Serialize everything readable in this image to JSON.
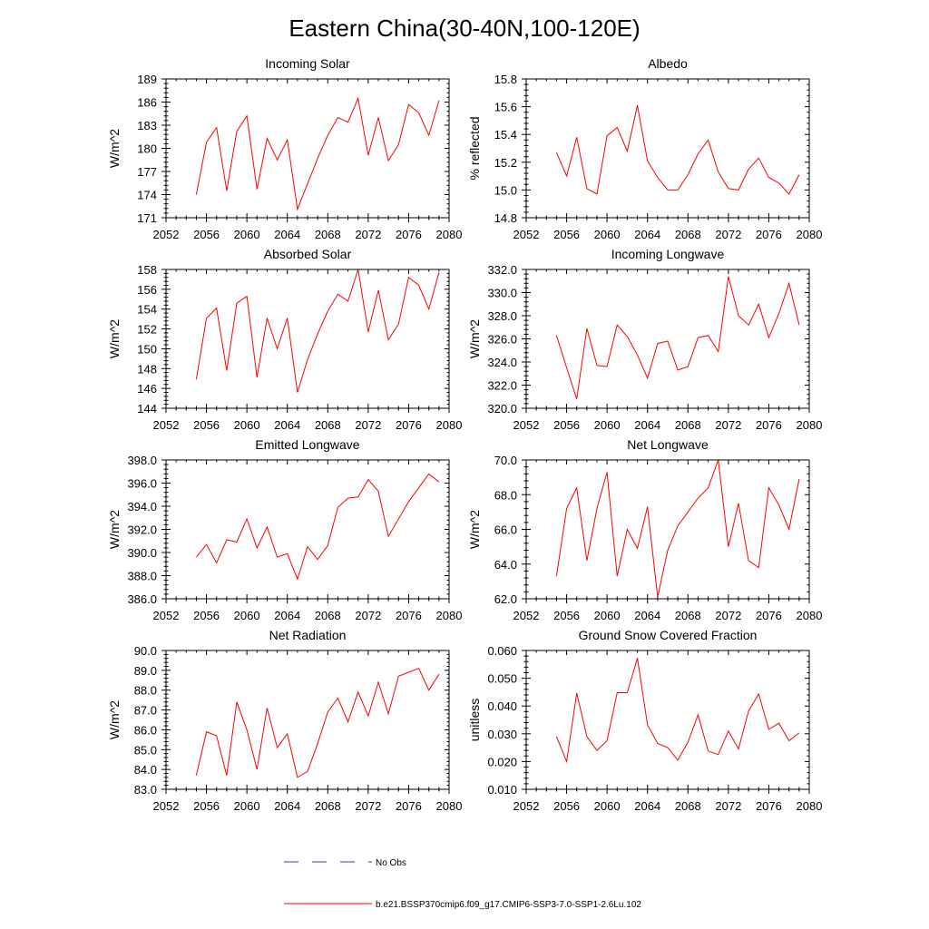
{
  "title": "Eastern China(30-40N,100-120E)",
  "legend": {
    "no_obs_label": "No Obs",
    "model_label": "b.e21.BSSP370cmip6.f09_g17.CMIP6-SSP3-7.0-SSP1-2.6Lu.102",
    "no_obs_color": "#3a3aa8",
    "model_color": "#ff0000"
  },
  "chart_data": [
    {
      "type": "line",
      "title": "Incoming Solar",
      "ylabel": "W/m^2",
      "xlim": [
        2052,
        2080
      ],
      "xticks": [
        2052,
        2056,
        2060,
        2064,
        2068,
        2072,
        2076,
        2080
      ],
      "ylim": [
        171,
        189
      ],
      "yticks": [
        171,
        174,
        177,
        180,
        183,
        186,
        189
      ],
      "ydecimals": 0,
      "x": [
        2055,
        2056,
        2057,
        2058,
        2059,
        2060,
        2061,
        2062,
        2063,
        2064,
        2065,
        2066,
        2067,
        2068,
        2069,
        2070,
        2071,
        2072,
        2073,
        2074,
        2075,
        2076,
        2077,
        2078,
        2079
      ],
      "series": [
        {
          "name": "b.e21.BSSP370cmip6.f09_g17.CMIP6-SSP3-7.0-SSP1-2.6Lu.102",
          "values": [
            174.0,
            180.8,
            182.7,
            174.5,
            182.2,
            184.2,
            174.7,
            181.3,
            178.5,
            181.1,
            172.1,
            175.4,
            178.7,
            181.7,
            184.0,
            183.4,
            186.5,
            179.1,
            184.0,
            178.4,
            180.5,
            185.7,
            184.6,
            181.7,
            186.2
          ]
        }
      ]
    },
    {
      "type": "line",
      "title": "Albedo",
      "ylabel": "% reflected",
      "xlim": [
        2052,
        2080
      ],
      "xticks": [
        2052,
        2056,
        2060,
        2064,
        2068,
        2072,
        2076,
        2080
      ],
      "ylim": [
        14.8,
        15.8
      ],
      "yticks": [
        14.8,
        15.0,
        15.2,
        15.4,
        15.6,
        15.8
      ],
      "ydecimals": 1,
      "x": [
        2055,
        2056,
        2057,
        2058,
        2059,
        2060,
        2061,
        2062,
        2063,
        2064,
        2065,
        2066,
        2067,
        2068,
        2069,
        2070,
        2071,
        2072,
        2073,
        2074,
        2075,
        2076,
        2077,
        2078,
        2079
      ],
      "series": [
        {
          "name": "b.e21.BSSP370cmip6.f09_g17.CMIP6-SSP3-7.0-SSP1-2.6Lu.102",
          "values": [
            15.27,
            15.1,
            15.38,
            15.01,
            14.97,
            15.39,
            15.45,
            15.28,
            15.61,
            15.21,
            15.09,
            15.0,
            15.0,
            15.11,
            15.26,
            15.36,
            15.13,
            15.01,
            15.0,
            15.15,
            15.23,
            15.09,
            15.05,
            14.97,
            15.11
          ]
        }
      ]
    },
    {
      "type": "line",
      "title": "Absorbed Solar",
      "ylabel": "W/m^2",
      "xlim": [
        2052,
        2080
      ],
      "xticks": [
        2052,
        2056,
        2060,
        2064,
        2068,
        2072,
        2076,
        2080
      ],
      "ylim": [
        144,
        158
      ],
      "yticks": [
        144,
        146,
        148,
        150,
        152,
        154,
        156,
        158
      ],
      "ydecimals": 0,
      "x": [
        2055,
        2056,
        2057,
        2058,
        2059,
        2060,
        2061,
        2062,
        2063,
        2064,
        2065,
        2066,
        2067,
        2068,
        2069,
        2070,
        2071,
        2072,
        2073,
        2074,
        2075,
        2076,
        2077,
        2078,
        2079
      ],
      "series": [
        {
          "name": "b.e21.BSSP370cmip6.f09_g17.CMIP6-SSP3-7.0-SSP1-2.6Lu.102",
          "values": [
            146.9,
            153.1,
            154.1,
            147.8,
            154.6,
            155.3,
            147.1,
            153.1,
            150.0,
            153.1,
            145.6,
            148.9,
            151.5,
            153.8,
            155.5,
            154.8,
            158.0,
            151.7,
            155.9,
            150.9,
            152.5,
            157.2,
            156.4,
            154.0,
            157.7
          ]
        }
      ]
    },
    {
      "type": "line",
      "title": "Incoming Longwave",
      "ylabel": "W/m^2",
      "xlim": [
        2052,
        2080
      ],
      "xticks": [
        2052,
        2056,
        2060,
        2064,
        2068,
        2072,
        2076,
        2080
      ],
      "ylim": [
        320.0,
        332.0
      ],
      "yticks": [
        320.0,
        322.0,
        324.0,
        326.0,
        328.0,
        330.0,
        332.0
      ],
      "ydecimals": 1,
      "x": [
        2055,
        2056,
        2057,
        2058,
        2059,
        2060,
        2061,
        2062,
        2063,
        2064,
        2065,
        2066,
        2067,
        2068,
        2069,
        2070,
        2071,
        2072,
        2073,
        2074,
        2075,
        2076,
        2077,
        2078,
        2079
      ],
      "series": [
        {
          "name": "b.e21.BSSP370cmip6.f09_g17.CMIP6-SSP3-7.0-SSP1-2.6Lu.102",
          "values": [
            326.3,
            323.5,
            320.8,
            326.9,
            323.7,
            323.6,
            327.2,
            326.2,
            324.6,
            322.6,
            325.6,
            325.8,
            323.3,
            323.6,
            326.1,
            326.3,
            324.9,
            331.4,
            328.0,
            327.2,
            329.0,
            326.1,
            328.2,
            330.8,
            327.2
          ]
        }
      ]
    },
    {
      "type": "line",
      "title": "Emitted Longwave",
      "ylabel": "W/m^2",
      "xlim": [
        2052,
        2080
      ],
      "xticks": [
        2052,
        2056,
        2060,
        2064,
        2068,
        2072,
        2076,
        2080
      ],
      "ylim": [
        386.0,
        398.0
      ],
      "yticks": [
        386.0,
        388.0,
        390.0,
        392.0,
        394.0,
        396.0,
        398.0
      ],
      "ydecimals": 1,
      "x": [
        2055,
        2056,
        2057,
        2058,
        2059,
        2060,
        2061,
        2062,
        2063,
        2064,
        2065,
        2066,
        2067,
        2068,
        2069,
        2070,
        2071,
        2072,
        2073,
        2074,
        2075,
        2076,
        2077,
        2078,
        2079
      ],
      "series": [
        {
          "name": "b.e21.BSSP370cmip6.f09_g17.CMIP6-SSP3-7.0-SSP1-2.6Lu.102",
          "values": [
            389.6,
            390.7,
            389.1,
            391.1,
            390.9,
            392.9,
            390.4,
            392.2,
            389.6,
            389.9,
            387.7,
            390.5,
            389.4,
            390.6,
            393.9,
            394.7,
            394.8,
            396.3,
            395.3,
            391.4,
            392.9,
            394.4,
            395.6,
            396.8,
            396.1
          ]
        }
      ]
    },
    {
      "type": "line",
      "title": "Net Longwave",
      "ylabel": "W/m^2",
      "xlim": [
        2052,
        2080
      ],
      "xticks": [
        2052,
        2056,
        2060,
        2064,
        2068,
        2072,
        2076,
        2080
      ],
      "ylim": [
        62.0,
        70.0
      ],
      "yticks": [
        62.0,
        64.0,
        66.0,
        68.0,
        70.0
      ],
      "ydecimals": 1,
      "x": [
        2055,
        2056,
        2057,
        2058,
        2059,
        2060,
        2061,
        2062,
        2063,
        2064,
        2065,
        2066,
        2067,
        2068,
        2069,
        2070,
        2071,
        2072,
        2073,
        2074,
        2075,
        2076,
        2077,
        2078,
        2079
      ],
      "series": [
        {
          "name": "b.e21.BSSP370cmip6.f09_g17.CMIP6-SSP3-7.0-SSP1-2.6Lu.102",
          "values": [
            63.3,
            67.2,
            68.4,
            64.2,
            67.2,
            69.3,
            63.3,
            66.0,
            64.9,
            67.3,
            62.1,
            64.8,
            66.2,
            67.0,
            67.8,
            68.4,
            70.0,
            65.0,
            67.5,
            64.2,
            63.8,
            68.4,
            67.4,
            66.0,
            68.9
          ]
        }
      ]
    },
    {
      "type": "line",
      "title": "Net Radiation",
      "ylabel": "W/m^2",
      "xlim": [
        2052,
        2080
      ],
      "xticks": [
        2052,
        2056,
        2060,
        2064,
        2068,
        2072,
        2076,
        2080
      ],
      "ylim": [
        83.0,
        90.0
      ],
      "yticks": [
        83.0,
        84.0,
        85.0,
        86.0,
        87.0,
        88.0,
        89.0,
        90.0
      ],
      "ydecimals": 1,
      "x": [
        2055,
        2056,
        2057,
        2058,
        2059,
        2060,
        2061,
        2062,
        2063,
        2064,
        2065,
        2066,
        2067,
        2068,
        2069,
        2070,
        2071,
        2072,
        2073,
        2074,
        2075,
        2076,
        2077,
        2078,
        2079
      ],
      "series": [
        {
          "name": "b.e21.BSSP370cmip6.f09_g17.CMIP6-SSP3-7.0-SSP1-2.6Lu.102",
          "values": [
            83.7,
            85.9,
            85.7,
            83.7,
            87.4,
            86.0,
            84.0,
            87.1,
            85.1,
            85.8,
            83.6,
            83.9,
            85.3,
            86.9,
            87.6,
            86.4,
            87.9,
            86.7,
            88.4,
            86.8,
            88.7,
            88.9,
            89.1,
            88.0,
            88.8
          ]
        }
      ]
    },
    {
      "type": "line",
      "title": "Ground Snow Covered Fraction",
      "ylabel": "unitless",
      "xlim": [
        2052,
        2080
      ],
      "xticks": [
        2052,
        2056,
        2060,
        2064,
        2068,
        2072,
        2076,
        2080
      ],
      "ylim": [
        0.01,
        0.06
      ],
      "yticks": [
        0.01,
        0.02,
        0.03,
        0.04,
        0.05,
        0.06
      ],
      "ydecimals": 3,
      "x": [
        2055,
        2056,
        2057,
        2058,
        2059,
        2060,
        2061,
        2062,
        2063,
        2064,
        2065,
        2066,
        2067,
        2068,
        2069,
        2070,
        2071,
        2072,
        2073,
        2074,
        2075,
        2076,
        2077,
        2078,
        2079
      ],
      "series": [
        {
          "name": "b.e21.BSSP370cmip6.f09_g17.CMIP6-SSP3-7.0-SSP1-2.6Lu.102",
          "values": [
            0.029,
            0.02,
            0.0447,
            0.029,
            0.024,
            0.0275,
            0.0448,
            0.0448,
            0.0573,
            0.0332,
            0.0265,
            0.025,
            0.0205,
            0.027,
            0.0368,
            0.0238,
            0.0225,
            0.031,
            0.0245,
            0.0382,
            0.0443,
            0.0316,
            0.0338,
            0.0275,
            0.0303
          ]
        }
      ]
    }
  ]
}
